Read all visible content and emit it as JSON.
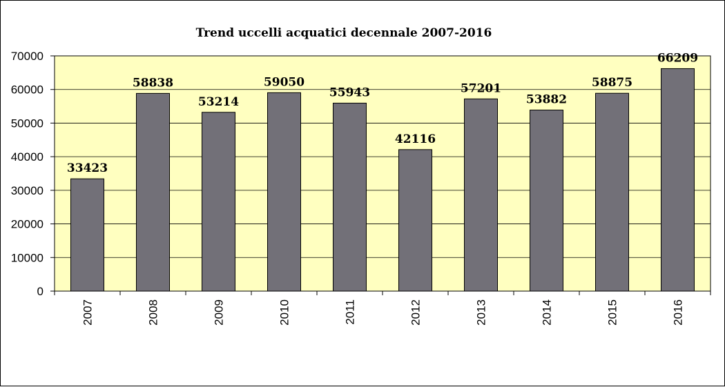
{
  "chart_data": {
    "type": "bar",
    "title": "Trend uccelli acquatici decennale 2007-2016",
    "categories": [
      "2007",
      "2008",
      "2009",
      "2010",
      "2011",
      "2012",
      "2013",
      "2014",
      "2015",
      "2016"
    ],
    "values": [
      33423,
      58838,
      53214,
      59050,
      55943,
      42116,
      57201,
      53882,
      58875,
      66209
    ],
    "data_labels": [
      "33423",
      "58838",
      "53214",
      "59050",
      "55943",
      "42116",
      "57201",
      "53882",
      "58875",
      "66209"
    ],
    "y_ticks": [
      "0",
      "10000",
      "20000",
      "30000",
      "40000",
      "50000",
      "60000",
      "70000"
    ],
    "xlabel": "",
    "ylabel": "",
    "ylim": [
      0,
      70000
    ],
    "grid": true,
    "legend": "none",
    "x_tick_rotation": "vertical",
    "colors": {
      "plot_background": "#FFFFC0",
      "bar_fill": "#727078",
      "bar_stroke": "#000000",
      "gridline": "#000000"
    }
  }
}
